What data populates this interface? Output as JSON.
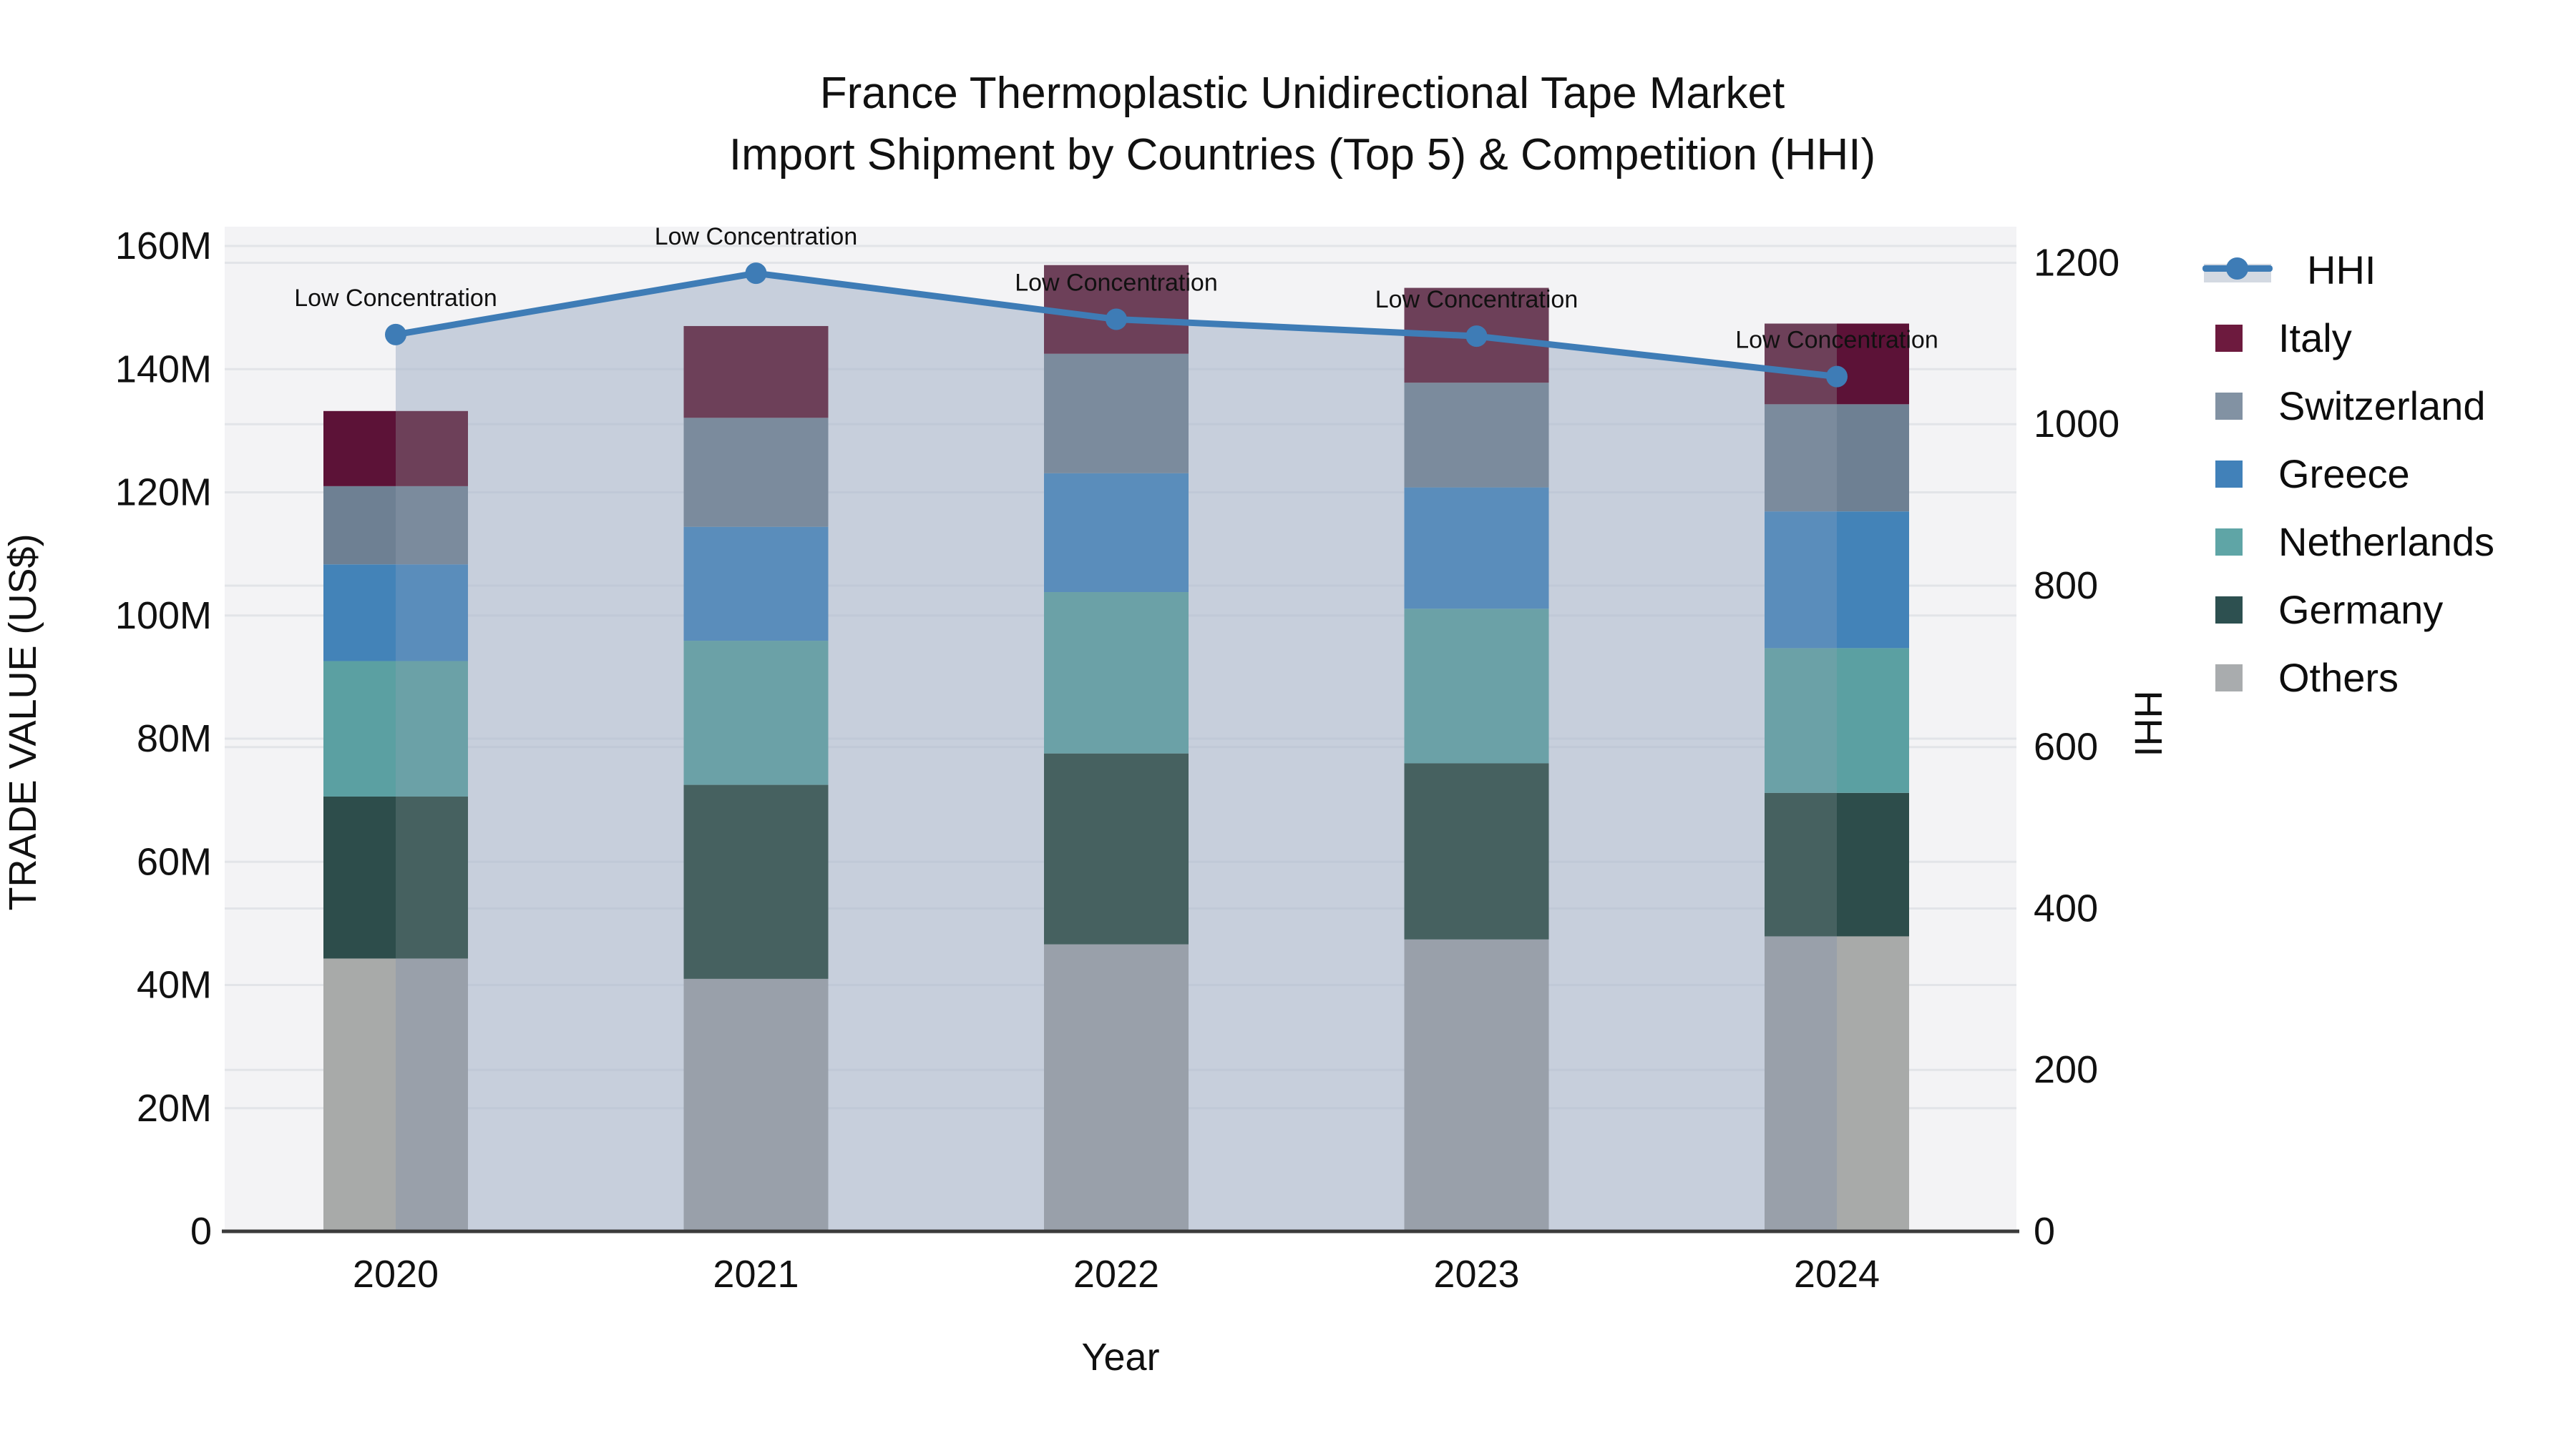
{
  "title": {
    "line1": "France Thermoplastic Unidirectional Tape Market",
    "line2": "Import Shipment by Countries (Top 5) & Competition (HHI)"
  },
  "chart_data": {
    "type": "combo-stacked-bar-line",
    "categories": [
      "2020",
      "2021",
      "2022",
      "2023",
      "2024"
    ],
    "xlabel": "Year",
    "y_left": {
      "label": "TRADE VALUE (US$)",
      "unit": "million US$",
      "ticks": [
        "0",
        "20M",
        "40M",
        "60M",
        "80M",
        "100M",
        "120M",
        "140M",
        "160M"
      ],
      "tick_values": [
        0,
        20,
        40,
        60,
        80,
        100,
        120,
        140,
        160
      ]
    },
    "y_right": {
      "label": "HHI",
      "ticks": [
        "0",
        "200",
        "400",
        "600",
        "800",
        "1000",
        "1200"
      ],
      "tick_values": [
        0,
        200,
        400,
        600,
        800,
        1000,
        1200
      ]
    },
    "stack_order_note": "series listed bottom-to-top of stack; values in million US$",
    "series": [
      {
        "name": "Others",
        "values": [
          44.3,
          41.0,
          46.6,
          47.4,
          47.9
        ],
        "color": "#a8aaa9",
        "color_shaded": "#99a0aa",
        "legend_color": "#a9acae"
      },
      {
        "name": "Germany",
        "values": [
          26.3,
          31.5,
          31.0,
          28.6,
          23.3
        ],
        "color": "#2d4d4b",
        "color_shaded": "#466160",
        "legend_color": "#2d5050"
      },
      {
        "name": "Netherlands",
        "values": [
          22.0,
          23.4,
          26.2,
          25.1,
          23.5
        ],
        "color": "#5ba0a2",
        "color_shaded": "#6ba1a7",
        "legend_color": "#5fa5a6"
      },
      {
        "name": "Greece",
        "values": [
          15.7,
          18.5,
          19.3,
          19.7,
          22.2
        ],
        "color": "#4383b8",
        "color_shaded": "#5a8dbb",
        "legend_color": "#4181b9"
      },
      {
        "name": "Switzerland",
        "values": [
          12.7,
          17.7,
          19.4,
          17.0,
          17.4
        ],
        "color": "#6e8093",
        "color_shaded": "#7b8b9d",
        "legend_color": "#8292a3"
      },
      {
        "name": "Italy",
        "values": [
          12.2,
          14.9,
          14.4,
          15.4,
          13.1
        ],
        "color": "#5c1237",
        "color_shaded": "#6d4059",
        "legend_color": "#6d1a3e"
      }
    ],
    "bar_totals": [
      133.2,
      147.0,
      156.9,
      153.2,
      147.4
    ],
    "line": {
      "name": "HHI",
      "axis": "right",
      "values": [
        1111,
        1187,
        1130,
        1109,
        1059
      ],
      "color": "#3e7cb6",
      "annotations": [
        "Low Concentration",
        "Low Concentration",
        "Low Concentration",
        "Low Concentration",
        "Low Concentration"
      ]
    },
    "legend_order": [
      "HHI",
      "Italy",
      "Switzerland",
      "Greece",
      "Netherlands",
      "Germany",
      "Others"
    ],
    "colors": {
      "plot_background": "#f3f3f5",
      "gridline": "#e2e4e8",
      "axis_line": "#3b3b3b",
      "area_fill": "rgba(171,184,205,0.62)",
      "annotation_text": "#111111"
    },
    "layout_hints": {
      "grid": true,
      "legend_position": "right",
      "ylim_left": [
        0,
        163
      ],
      "ylim_right": [
        0,
        1245
      ]
    }
  }
}
